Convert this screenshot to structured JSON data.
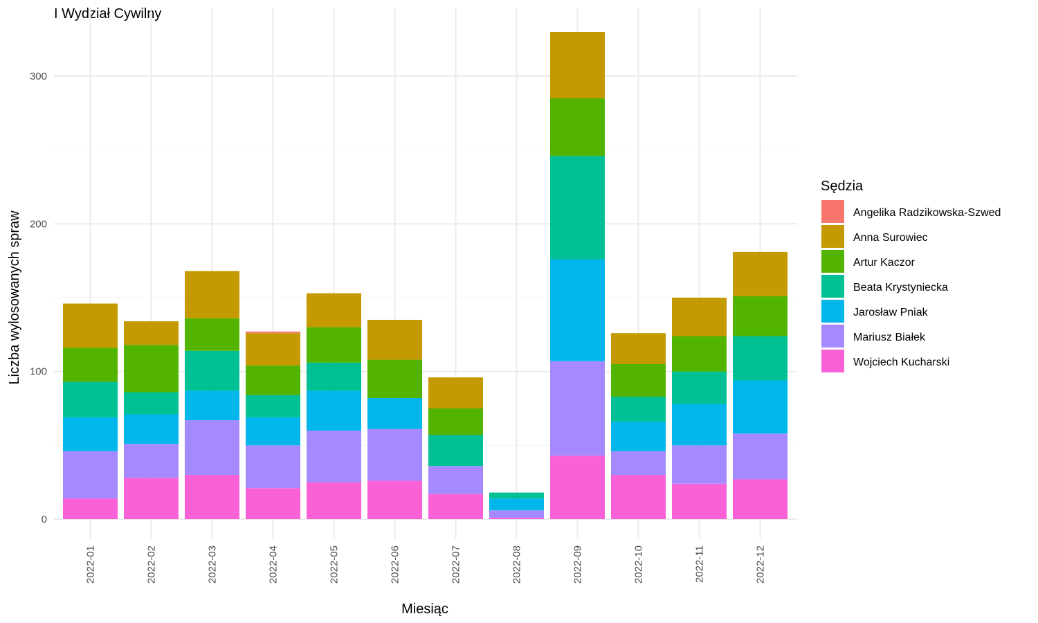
{
  "chart_data": {
    "type": "bar",
    "stacked": true,
    "title": "I Wydział Cywilny",
    "xlabel": "Miesiąc",
    "ylabel": "Liczba wylosowanych spraw",
    "ylim": [
      0,
      330
    ],
    "yticks": [
      0,
      100,
      200,
      300
    ],
    "grid": true,
    "legend_title": "Sędzia",
    "legend_position": "right",
    "categories": [
      "2022-01",
      "2022-02",
      "2022-03",
      "2022-04",
      "2022-05",
      "2022-06",
      "2022-07",
      "2022-08",
      "2022-09",
      "2022-10",
      "2022-11",
      "2022-12"
    ],
    "series": [
      {
        "name": "Angelika Radzikowska-Szwed",
        "color": "#F8766D",
        "values": [
          0,
          0,
          0,
          1,
          0,
          0,
          0,
          0,
          0,
          0,
          0,
          0
        ]
      },
      {
        "name": "Anna Surowiec",
        "color": "#C49A00",
        "values": [
          30,
          16,
          32,
          22,
          23,
          27,
          21,
          0,
          45,
          21,
          26,
          30
        ]
      },
      {
        "name": "Artur Kaczor",
        "color": "#53B400",
        "values": [
          23,
          32,
          22,
          20,
          24,
          26,
          18,
          0,
          39,
          22,
          24,
          27
        ]
      },
      {
        "name": "Beata Krystyniecka",
        "color": "#00C094",
        "values": [
          24,
          15,
          27,
          15,
          19,
          0,
          21,
          4,
          70,
          17,
          22,
          30
        ]
      },
      {
        "name": "Jarosław Pniak",
        "color": "#00B6EB",
        "values": [
          23,
          20,
          20,
          19,
          27,
          21,
          0,
          8,
          69,
          20,
          28,
          36
        ]
      },
      {
        "name": "Mariusz Białek",
        "color": "#A58AFF",
        "values": [
          32,
          23,
          37,
          29,
          35,
          35,
          19,
          5,
          64,
          16,
          26,
          31
        ]
      },
      {
        "name": "Wojciech Kucharski",
        "color": "#FB61D7",
        "values": [
          14,
          28,
          30,
          21,
          25,
          26,
          17,
          1,
          43,
          30,
          24,
          27
        ]
      }
    ]
  }
}
